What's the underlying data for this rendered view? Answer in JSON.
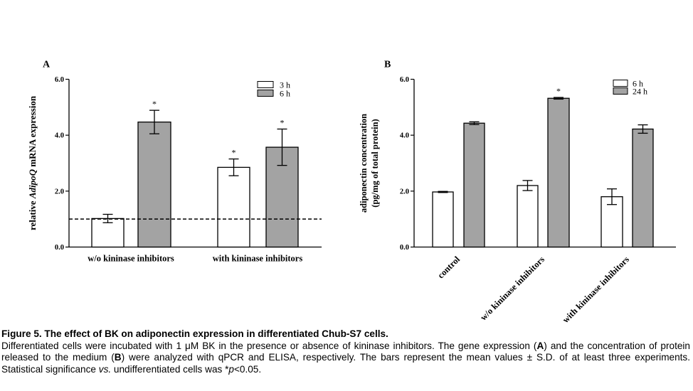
{
  "chart_data": [
    {
      "type": "bar",
      "panel_label": "A",
      "ylabel_parts": [
        "relative ",
        "AdipoQ",
        " mRNA expression"
      ],
      "ylim": [
        0,
        6
      ],
      "yticks": [
        "0.0",
        "2.0",
        "4.0",
        "6.0"
      ],
      "categories": [
        "w/o kininase inhibitors",
        "with kininase inhibitors"
      ],
      "legend_position": "top-right",
      "reference_line": 1.0,
      "series": [
        {
          "name": "3 h",
          "color": "#ffffff",
          "values": [
            1.02,
            2.85
          ],
          "errors": [
            0.15,
            0.3
          ],
          "significance": [
            "",
            "*"
          ]
        },
        {
          "name": "6 h",
          "color": "#a3a3a3",
          "values": [
            4.47,
            3.57
          ],
          "errors": [
            0.42,
            0.65
          ],
          "significance": [
            "*",
            "*"
          ]
        }
      ]
    },
    {
      "type": "bar",
      "panel_label": "B",
      "ylabel_line1": "adiponectin concentration",
      "ylabel_line2": "(pg/mg of total protein)",
      "ylim": [
        0,
        6
      ],
      "yticks": [
        "0.0",
        "2.0",
        "4.0",
        "6.0"
      ],
      "categories": [
        "control",
        "w/o kininase inhibitors",
        "with kininase inhibitors"
      ],
      "legend_position": "top-right",
      "series": [
        {
          "name": "6 h",
          "color": "#ffffff",
          "values": [
            1.97,
            2.2,
            1.8
          ],
          "errors": [
            0.02,
            0.18,
            0.28
          ],
          "significance": [
            "",
            "",
            ""
          ]
        },
        {
          "name": "24 h",
          "color": "#a3a3a3",
          "values": [
            4.43,
            5.32,
            4.22
          ],
          "errors": [
            0.05,
            0.03,
            0.15
          ],
          "significance": [
            "",
            "*",
            ""
          ]
        }
      ]
    }
  ],
  "caption": {
    "title": "Figure 5. The effect of BK on adiponectin expression in differentiated Chub-S7 cells.",
    "t1": "Differentiated cells were incubated with 1 μM BK in the presence or absence of kininase inhibitors. The gene expression (",
    "a": "A",
    "t2": ") and the concentration of protein released to the medium (",
    "b": "B",
    "t3": ") were analyzed with qPCR and ELISA, respectively. The bars represent the mean values ± S.D. of at least three experiments. Statistical significance ",
    "vs": "vs.",
    "t4": " undifferentiated cells was *",
    "p": "p",
    "t5": "<0.05."
  }
}
